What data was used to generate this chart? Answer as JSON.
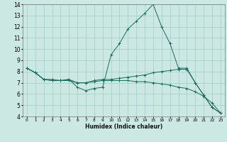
{
  "xlabel": "Humidex (Indice chaleur)",
  "ylabel": "",
  "bg_color": "#cce8e3",
  "grid_color": "#aad0cb",
  "line_color": "#1a6b5e",
  "xlim": [
    -0.5,
    23.5
  ],
  "ylim": [
    4,
    14
  ],
  "xticks": [
    0,
    1,
    2,
    3,
    4,
    5,
    6,
    7,
    8,
    9,
    10,
    11,
    12,
    13,
    14,
    15,
    16,
    17,
    18,
    19,
    20,
    21,
    22,
    23
  ],
  "yticks": [
    4,
    5,
    6,
    7,
    8,
    9,
    10,
    11,
    12,
    13,
    14
  ],
  "series": [
    {
      "x": [
        0,
        1,
        2,
        3,
        4,
        5,
        6,
        7,
        8,
        9,
        10,
        11,
        12,
        13,
        14,
        15,
        16,
        17,
        18,
        19,
        20,
        21,
        22,
        23
      ],
      "y": [
        8.3,
        7.9,
        7.3,
        7.3,
        7.2,
        7.3,
        6.6,
        6.3,
        6.5,
        6.6,
        9.5,
        10.5,
        11.8,
        12.5,
        13.2,
        14.0,
        12.0,
        10.5,
        8.3,
        8.3,
        7.0,
        5.9,
        4.8,
        4.3
      ]
    },
    {
      "x": [
        0,
        1,
        2,
        3,
        4,
        5,
        6,
        7,
        8,
        9,
        10,
        11,
        12,
        13,
        14,
        15,
        16,
        17,
        18,
        19,
        20,
        21,
        22,
        23
      ],
      "y": [
        8.3,
        7.9,
        7.3,
        7.2,
        7.2,
        7.3,
        7.0,
        7.0,
        7.2,
        7.3,
        7.3,
        7.4,
        7.5,
        7.6,
        7.7,
        7.9,
        8.0,
        8.1,
        8.2,
        8.2,
        7.0,
        5.9,
        4.8,
        4.3
      ]
    },
    {
      "x": [
        0,
        1,
        2,
        3,
        4,
        5,
        6,
        7,
        8,
        9,
        10,
        11,
        12,
        13,
        14,
        15,
        16,
        17,
        18,
        19,
        20,
        21,
        22,
        23
      ],
      "y": [
        8.3,
        7.9,
        7.3,
        7.2,
        7.2,
        7.2,
        7.0,
        7.0,
        7.1,
        7.2,
        7.2,
        7.2,
        7.2,
        7.1,
        7.1,
        7.0,
        6.9,
        6.8,
        6.6,
        6.5,
        6.2,
        5.8,
        5.2,
        4.3
      ]
    }
  ]
}
